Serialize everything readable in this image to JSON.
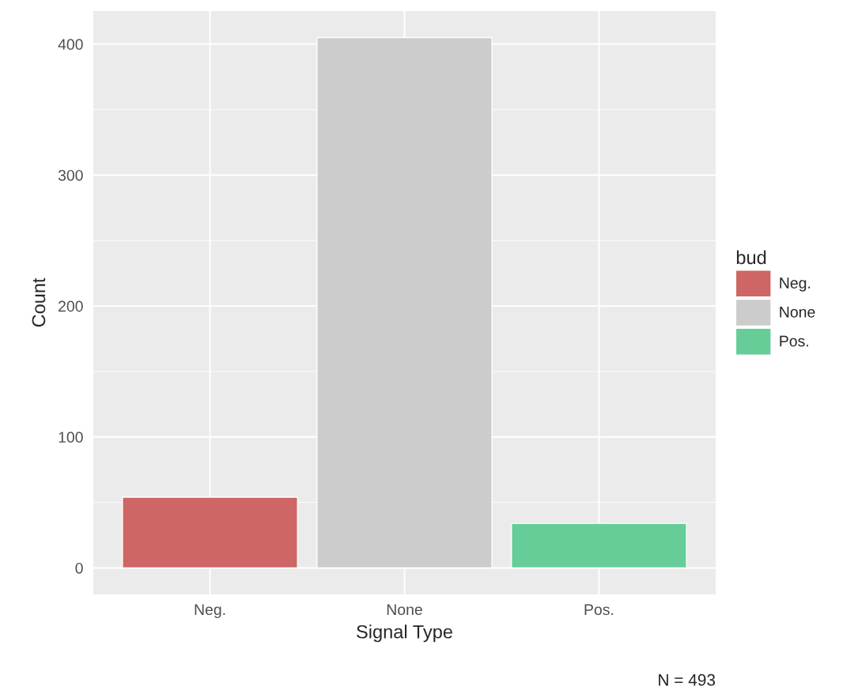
{
  "chart_data": {
    "type": "bar",
    "xlabel": "Signal Type",
    "ylabel": "Count",
    "legend_title": "bud",
    "categories": [
      "Neg.",
      "None",
      "Pos."
    ],
    "series": [
      {
        "name": "Neg.",
        "color": "#cd6664",
        "values": [
          54,
          null,
          null
        ]
      },
      {
        "name": "None",
        "color": "#cccccc",
        "values": [
          null,
          405,
          null
        ]
      },
      {
        "name": "Pos.",
        "color": "#66cd99",
        "values": [
          null,
          null,
          34
        ]
      }
    ],
    "ylim": [
      -20.25,
      425.25
    ],
    "yticks": [
      0,
      100,
      200,
      300,
      400
    ],
    "grid": true,
    "legend": "right",
    "annotations": [
      "N = 493"
    ]
  }
}
